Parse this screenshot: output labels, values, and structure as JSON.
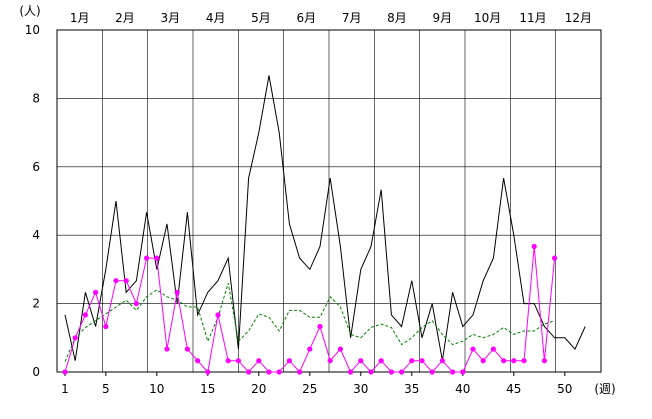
{
  "chart_data": {
    "type": "line",
    "y_unit_label": "(人)",
    "x_unit_label": "(週)",
    "ylim": [
      0,
      10
    ],
    "xlim": [
      1,
      53
    ],
    "y_ticks": [
      0,
      2,
      4,
      6,
      8,
      10
    ],
    "x_ticks": [
      1,
      5,
      10,
      15,
      20,
      25,
      30,
      35,
      40,
      45,
      50
    ],
    "months": [
      "1月",
      "2月",
      "3月",
      "4月",
      "5月",
      "6月",
      "7月",
      "8月",
      "9月",
      "10月",
      "11月",
      "12月"
    ],
    "grid": true,
    "series": [
      {
        "color": "#000000",
        "style": "solid",
        "values": [
          1.67,
          0.33,
          2.33,
          1.33,
          3.0,
          5.0,
          2.33,
          2.67,
          4.67,
          3.0,
          4.33,
          2.0,
          4.67,
          1.67,
          2.33,
          2.67,
          3.33,
          0.67,
          5.67,
          7.0,
          8.67,
          7.0,
          4.33,
          3.33,
          3.0,
          3.67,
          5.67,
          3.67,
          1.0,
          3.0,
          3.67,
          5.33,
          1.67,
          1.33,
          2.67,
          1.0,
          2.0,
          0.33,
          2.33,
          1.33,
          1.67,
          2.67,
          3.33,
          5.67,
          4.0,
          2.0,
          2.0,
          1.33,
          1.0,
          1.0,
          0.67,
          1.33
        ]
      },
      {
        "color": "#008000",
        "style": "dashed",
        "values": [
          0.3,
          1.0,
          1.3,
          1.5,
          1.7,
          1.9,
          2.1,
          1.8,
          2.2,
          2.4,
          2.2,
          2.1,
          1.9,
          1.9,
          0.9,
          1.6,
          2.6,
          0.9,
          1.2,
          1.7,
          1.6,
          1.2,
          1.8,
          1.8,
          1.6,
          1.6,
          2.2,
          1.9,
          1.1,
          1.0,
          1.3,
          1.4,
          1.3,
          0.8,
          1.0,
          1.3,
          1.5,
          1.1,
          0.8,
          0.9,
          1.1,
          1.0,
          1.1,
          1.3,
          1.1,
          1.2,
          1.2,
          1.4,
          1.5
        ]
      },
      {
        "color": "#ff00ff",
        "style": "solid-markers",
        "values": [
          0.0,
          1.0,
          1.67,
          2.33,
          1.33,
          2.67,
          2.67,
          2.0,
          3.33,
          3.33,
          0.67,
          2.33,
          0.67,
          0.33,
          0.0,
          1.67,
          0.33,
          0.33,
          0.0,
          0.33,
          0.0,
          0.0,
          0.33,
          0.0,
          0.67,
          1.33,
          0.33,
          0.67,
          0.0,
          0.33,
          0.0,
          0.33,
          0.0,
          0.0,
          0.33,
          0.33,
          0.0,
          0.33,
          0.0,
          0.0,
          0.67,
          0.33,
          0.67,
          0.33,
          0.33,
          0.33,
          3.67,
          0.33,
          3.33
        ]
      }
    ]
  }
}
